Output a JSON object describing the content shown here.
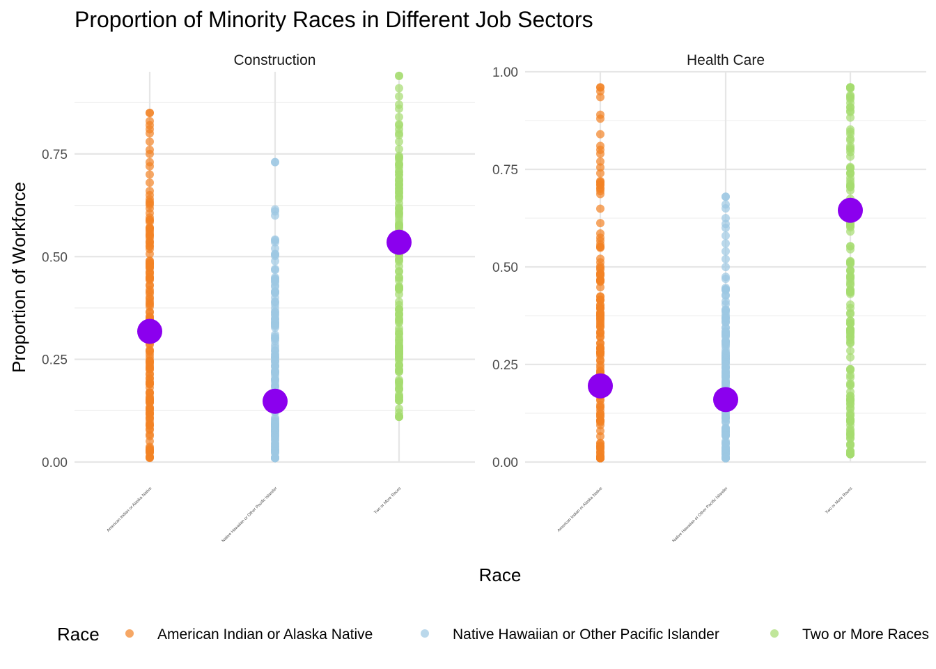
{
  "chart_data": {
    "type": "scatter",
    "title": "Proportion of Minority Races in Different Job Sectors",
    "xlabel": "Race",
    "ylabel": "Proportion of Workforce",
    "legend": {
      "title": "Race",
      "placement": "bottom",
      "entries": [
        {
          "label": "American Indian or Alaska Native",
          "color": "#F28123"
        },
        {
          "label": "Native Hawaiian or Other Pacific Islander",
          "color": "#9DC8E2"
        },
        {
          "label": "Two or More Races",
          "color": "#A5DB6F"
        }
      ]
    },
    "categories": [
      "American Indian or Alaska Native",
      "Native Hawaiian or Other Pacific Islander",
      "Two or More Races"
    ],
    "mean_color": "#8B00EE",
    "panels": [
      {
        "facet": "Construction",
        "ylim": [
          0,
          0.95
        ],
        "yticks": [
          "0.00",
          "0.25",
          "0.50",
          "0.75"
        ],
        "series": [
          {
            "name": "American Indian or Alaska Native",
            "min": 0.01,
            "max": 0.85,
            "mean": 0.318,
            "sparse": [
              0.85,
              0.83,
              0.82,
              0.81,
              0.8,
              0.78,
              0.76,
              0.75,
              0.73,
              0.72,
              0.7,
              0.68,
              0.66,
              0.65,
              0.63
            ]
          },
          {
            "name": "Native Hawaiian or Other Pacific Islander",
            "min": 0.01,
            "max": 0.73,
            "mean": 0.148,
            "sparse": [
              0.73,
              0.615,
              0.61,
              0.6,
              0.535,
              0.52,
              0.47,
              0.445,
              0.43,
              0.415,
              0.4,
              0.39,
              0.375,
              0.36,
              0.35,
              0.34
            ]
          },
          {
            "name": "Two or More Races",
            "min": 0.11,
            "max": 0.94,
            "mean": 0.535,
            "sparse": [
              0.94,
              0.91,
              0.89,
              0.87,
              0.86,
              0.84,
              0.82,
              0.81,
              0.8,
              0.78,
              0.2,
              0.18,
              0.16,
              0.15,
              0.13,
              0.12,
              0.11
            ]
          }
        ]
      },
      {
        "facet": "Health Care",
        "ylim": [
          0,
          1.0
        ],
        "yticks": [
          "0.00",
          "0.25",
          "0.50",
          "0.75",
          "1.00"
        ],
        "series": [
          {
            "name": "American Indian or Alaska Native",
            "min": 0.01,
            "max": 0.96,
            "mean": 0.195,
            "sparse": [
              0.96,
              0.95,
              0.935,
              0.89,
              0.88,
              0.84,
              0.81,
              0.8,
              0.79,
              0.77,
              0.755,
              0.74,
              0.72,
              0.7
            ]
          },
          {
            "name": "Native Hawaiian or Other Pacific Islander",
            "min": 0.01,
            "max": 0.68,
            "mean": 0.16,
            "sparse": [
              0.68,
              0.66,
              0.65,
              0.625,
              0.61,
              0.6,
              0.58,
              0.56,
              0.54,
              0.52
            ]
          },
          {
            "name": "Two or More Races",
            "min": 0.02,
            "max": 0.96,
            "mean": 0.645,
            "sparse": [
              0.96,
              0.94,
              0.93,
              0.92,
              0.18,
              0.16,
              0.15,
              0.12,
              0.08,
              0.075,
              0.06,
              0.025,
              0.02
            ]
          }
        ]
      }
    ]
  }
}
